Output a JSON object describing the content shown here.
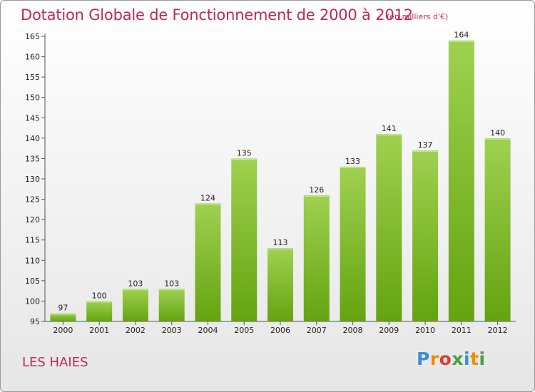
{
  "header": {
    "title": "Dotation Globale de Fonctionnement de 2000 à 2012",
    "unit": "(en milliers d'€)"
  },
  "footer": {
    "place": "LES HAIES",
    "logo_letters": [
      "P",
      "r",
      "o",
      "x",
      "i",
      "t",
      "i"
    ]
  },
  "colors": {
    "accent": "#c0275d",
    "bar_light": "#9fd150",
    "bar_dark": "#64a310",
    "logo": [
      "#3a8ed6",
      "#f28c00",
      "#e53935",
      "#43a047",
      "#3a8ed6",
      "#f28c00",
      "#43a047"
    ]
  },
  "chart_data": {
    "type": "bar",
    "categories": [
      "2000",
      "2001",
      "2002",
      "2003",
      "2004",
      "2005",
      "2006",
      "2007",
      "2008",
      "2009",
      "2010",
      "2011",
      "2012"
    ],
    "values": [
      97,
      100,
      103,
      103,
      124,
      135,
      113,
      126,
      133,
      141,
      137,
      164,
      140
    ],
    "ylim": [
      95,
      165
    ],
    "yticks": [
      95,
      100,
      105,
      110,
      115,
      120,
      125,
      130,
      135,
      140,
      145,
      150,
      155,
      160,
      165
    ],
    "grid": false,
    "legend": "none"
  }
}
